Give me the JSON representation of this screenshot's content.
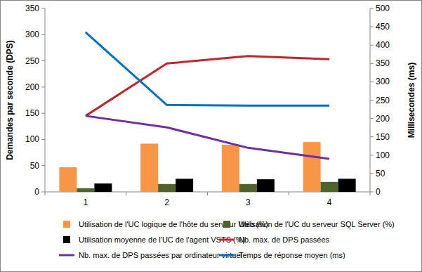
{
  "chart_data": {
    "type": "bar",
    "y_label": "Demandes par seconde (DPS)",
    "y2_label": "Millisecondes (ms)",
    "categories": [
      "1",
      "2",
      "3",
      "4"
    ],
    "ylim": [
      0,
      350
    ],
    "yticks": [
      0,
      50,
      100,
      150,
      200,
      250,
      300,
      350
    ],
    "y2lim": [
      0,
      500
    ],
    "y2ticks": [
      0,
      50,
      100,
      150,
      200,
      250,
      300,
      350,
      400,
      450,
      500
    ],
    "grid": false,
    "legend": "bottom",
    "series": [
      {
        "name": "Utilisation de l'UC logique de l'hôte du serveur Web (%)",
        "type": "bar",
        "color": "#f79646",
        "values": [
          47,
          92,
          90,
          95
        ]
      },
      {
        "name": "Utilisation de l'UC du serveur SQL Server (%)",
        "type": "bar",
        "color": "#4f6228",
        "values": [
          7,
          15,
          15,
          19
        ]
      },
      {
        "name": "Utilisation moyenne de l'UC de l'agent VSTS (%)",
        "type": "bar",
        "color": "#000000",
        "values": [
          16,
          25,
          24,
          25
        ]
      },
      {
        "name": "Nb. max. de DPS passées",
        "type": "line",
        "color": "#c0262d",
        "values": [
          145,
          245,
          259,
          253
        ]
      },
      {
        "name": "Nb. max. de DPS passées par ordinateur virtuel",
        "type": "line",
        "color": "#7030a0",
        "values": [
          145,
          123,
          84,
          63
        ]
      },
      {
        "name": "Temps de réponse moyen (ms)",
        "type": "line",
        "color": "#0070c0",
        "axis": "y2",
        "values": [
          435,
          237,
          235,
          235
        ]
      }
    ]
  }
}
